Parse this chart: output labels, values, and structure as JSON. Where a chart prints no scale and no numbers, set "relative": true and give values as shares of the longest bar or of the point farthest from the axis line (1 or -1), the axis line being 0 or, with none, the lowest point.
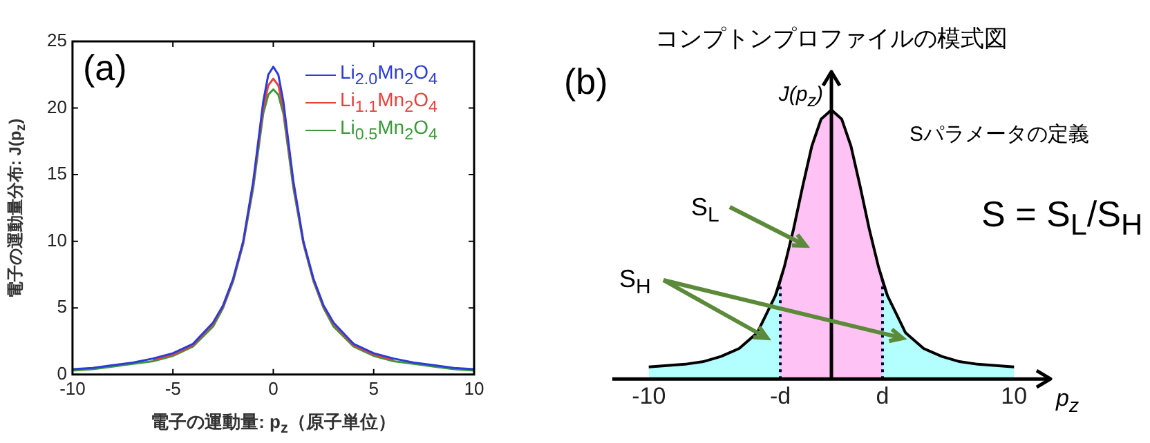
{
  "chart_data": [
    {
      "type": "line",
      "ylabel": "電子の運動量分布: J(p$_{z}$)",
      "xlabel": "電子の運動量: p$_{z}$（原子単位）",
      "annotations": [
        "(a)"
      ],
      "legend": "top right",
      "x": [
        -10,
        -9,
        -8,
        -7,
        -6,
        -5,
        -4,
        -3,
        -2.5,
        -2,
        -1.5,
        -1,
        -0.75,
        -0.5,
        -0.25,
        0,
        0.25,
        0.5,
        0.75,
        1,
        1.5,
        2,
        2.5,
        3,
        4,
        5,
        6,
        7,
        8,
        9,
        10
      ],
      "series": [
        {
          "name": "Li$_{2.0}$Mn$_{2}$O$_{4}$",
          "color": "#2b3bd8",
          "values": [
            0.4,
            0.5,
            0.7,
            0.9,
            1.2,
            1.6,
            2.3,
            3.9,
            5.2,
            7.2,
            10,
            14.5,
            17.5,
            20.5,
            22.5,
            23.1,
            22.5,
            20.5,
            17.5,
            14.5,
            10,
            7.2,
            5.2,
            3.9,
            2.3,
            1.6,
            1.2,
            0.9,
            0.7,
            0.5,
            0.4
          ]
        },
        {
          "name": "Li$_{1.1}$Mn$_{2}$O$_{4}$",
          "color": "#e8413c",
          "values": [
            null,
            null,
            null,
            null,
            1.1,
            1.5,
            2.2,
            3.8,
            5.1,
            7.1,
            9.9,
            14.3,
            17.2,
            20,
            21.7,
            22.2,
            21.7,
            20,
            17.2,
            14.3,
            9.9,
            7.1,
            5.1,
            3.8,
            2.2,
            1.5,
            1.1,
            null,
            null,
            null,
            null
          ]
        },
        {
          "name": "Li$_{0.5}$Mn$_{2}$O$_{4}$",
          "color": "#3a9a3a",
          "values": [
            0.3,
            0.4,
            0.6,
            0.8,
            1.0,
            1.4,
            2.1,
            3.6,
            5.0,
            7.0,
            9.8,
            14,
            16.8,
            19.6,
            21,
            21.4,
            21,
            19.6,
            16.8,
            14,
            9.8,
            7.0,
            5.0,
            3.6,
            2.1,
            1.4,
            1.0,
            0.8,
            0.6,
            0.4,
            0.3
          ]
        }
      ],
      "xlim": [
        -10,
        10
      ],
      "xticks": [
        -10,
        -5,
        0,
        5,
        10
      ],
      "ylim": [
        0,
        25
      ],
      "yticks": [
        0,
        5,
        10,
        15,
        20,
        25
      ]
    },
    {
      "type": "line",
      "relative": true,
      "title": "コンプトンプロファイルの模式図",
      "xlabel": "p$_{z}$",
      "ylabel": "J(p$_{z}$)",
      "annotations": [
        "(b)",
        "S$_{L}$",
        "S$_{H}$",
        "Sパラメータの定義",
        "S = S$_{L}$/S$_{H}$"
      ],
      "x": [
        -10,
        -9,
        -8,
        -7,
        -6,
        -5,
        -4,
        -3,
        -2.5,
        -2,
        -1.5,
        -1,
        -0.5,
        0,
        0.5,
        1,
        1.5,
        2,
        2.5,
        3,
        4,
        5,
        6,
        7,
        8,
        9,
        10
      ],
      "series": [
        {
          "type": "area",
          "color": "#b3ffff",
          "x": [
            -10,
            -9,
            -8,
            -7,
            -6,
            -5,
            -4,
            -3,
            -2.8
          ],
          "values": [
            0.04,
            0.045,
            0.05,
            0.06,
            0.08,
            0.11,
            0.17,
            0.31,
            0.35
          ]
        },
        {
          "type": "area",
          "color": "#ffc2f5",
          "x": [
            -2.8,
            -2.5,
            -2,
            -1.5,
            -1,
            -0.5,
            0,
            0.5,
            1,
            1.5,
            2,
            2.5,
            2.8
          ],
          "values": [
            0.35,
            0.42,
            0.56,
            0.72,
            0.87,
            0.97,
            1,
            0.97,
            0.87,
            0.72,
            0.56,
            0.42,
            0.35
          ]
        },
        {
          "type": "area",
          "color": "#b3ffff",
          "x": [
            2.8,
            3,
            4,
            5,
            6,
            7,
            8,
            9,
            10
          ],
          "values": [
            0.35,
            0.31,
            0.17,
            0.11,
            0.08,
            0.06,
            0.05,
            0.045,
            0.04
          ]
        },
        {
          "type": "line",
          "color": "#000000",
          "values": [
            0.04,
            0.045,
            0.05,
            0.06,
            0.08,
            0.11,
            0.17,
            0.31,
            0.42,
            0.56,
            0.72,
            0.87,
            0.97,
            1,
            0.97,
            0.87,
            0.72,
            0.56,
            0.42,
            0.31,
            0.17,
            0.11,
            0.08,
            0.06,
            0.05,
            0.045,
            0.04
          ]
        }
      ],
      "xlim": [
        -12,
        12
      ],
      "xticks": [
        -10,
        {
          "value": -2.8,
          "label": "-d"
        },
        {
          "value": 2.8,
          "label": "d"
        },
        10
      ],
      "tick_labels": "x",
      "ref_lines": [
        {
          "axis": "x",
          "value": -2.8,
          "line_style": "dotted"
        },
        {
          "axis": "x",
          "value": 2.8,
          "line_style": "dotted"
        }
      ]
    }
  ]
}
